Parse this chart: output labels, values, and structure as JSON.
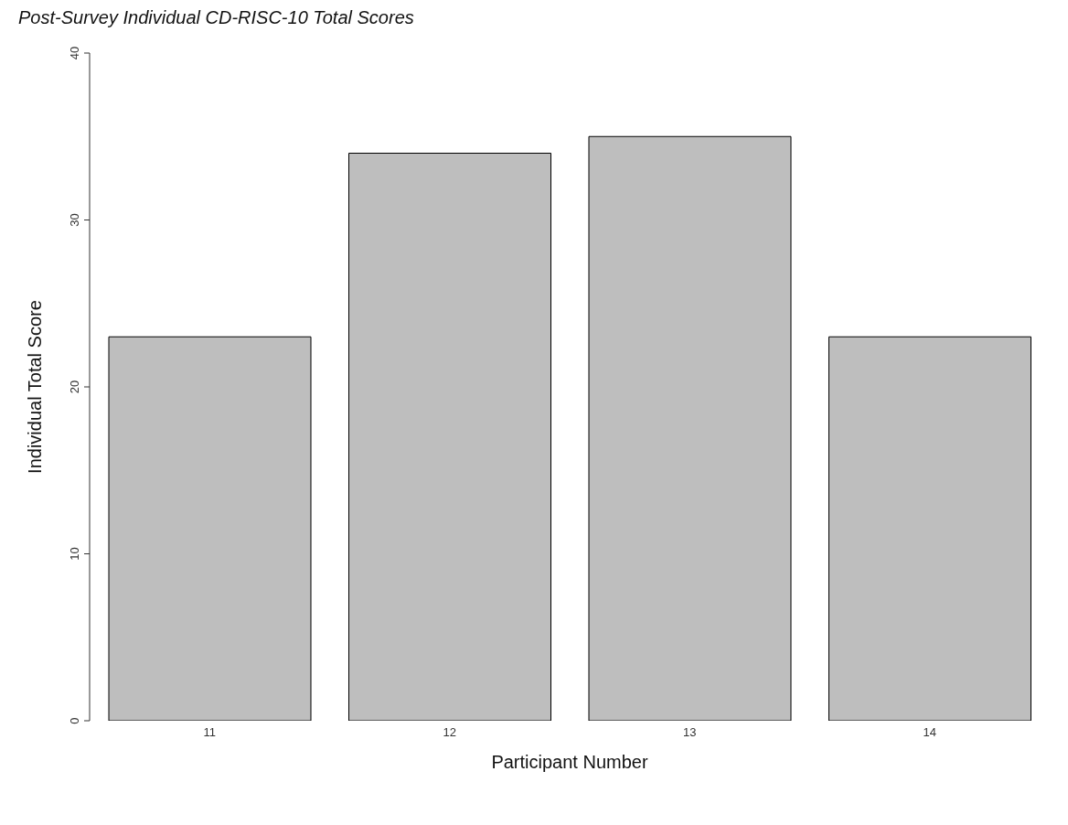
{
  "chart_data": {
    "type": "bar",
    "title": "Post-Survey Individual CD-RISC-10 Total Scores",
    "xlabel": "Participant Number",
    "ylabel": "Individual Total Score",
    "categories": [
      "11",
      "12",
      "13",
      "14"
    ],
    "values": [
      23,
      34,
      35,
      23
    ],
    "color": "#bebebe",
    "ylim": [
      0,
      40
    ],
    "yticks": [
      0,
      10,
      20,
      30,
      40
    ]
  }
}
